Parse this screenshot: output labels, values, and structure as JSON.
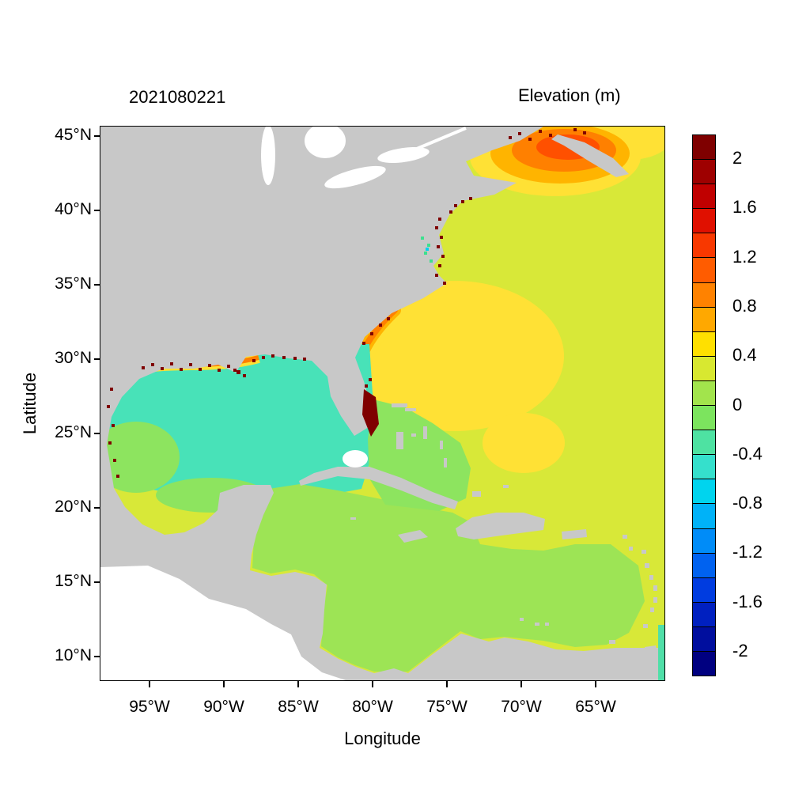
{
  "header": {
    "run_id": "2021080221",
    "colorbar_title": "Elevation (m)"
  },
  "axes": {
    "xlabel": "Longitude",
    "ylabel": "Latitude",
    "x_tick_labels": [
      "95°W",
      "90°W",
      "85°W",
      "80°W",
      "75°W",
      "70°W",
      "65°W"
    ],
    "y_tick_labels": [
      "45°N",
      "40°N",
      "35°N",
      "30°N",
      "25°N",
      "20°N",
      "15°N",
      "10°N"
    ]
  },
  "palette": {
    "land": "#c8c8c8",
    "lake": "#ffffff",
    "outside_domain": "#ffffff",
    "atlantic": "#d8e838",
    "yellow_patch": "#ffe135",
    "amber": "#ffb400",
    "orange": "#ff8000",
    "deep_orange": "#ff5000",
    "dark_red": "#7f0000",
    "gulf_teal": "#48e2b8",
    "green_light": "#8de45f",
    "caribbean_green": "#9de455",
    "teal_strip": "#50dfa8",
    "speckle_green": "#3ce08e",
    "speckle_cyan": "#00d0f0",
    "frame": "#000000"
  },
  "chart_data": {
    "type": "heatmap",
    "title": "Elevation (m)",
    "timestamp": "2021080221",
    "xlabel": "Longitude",
    "ylabel": "Latitude",
    "x_ticks_deg_west": [
      95,
      90,
      85,
      80,
      75,
      70,
      65
    ],
    "y_ticks_deg_north": [
      45,
      40,
      35,
      30,
      25,
      20,
      15,
      10
    ],
    "x_range_deg_west": [
      98,
      60
    ],
    "y_range_deg_north": [
      8.5,
      45.5
    ],
    "grid": false,
    "legend_position": "right-colorbar",
    "colorbar": {
      "label": "Elevation (m)",
      "min": -2.2,
      "max": 2.2,
      "step": 0.2,
      "tick_values": [
        2,
        1.6,
        1.2,
        0.8,
        0.4,
        0,
        -0.4,
        -0.8,
        -1.2,
        -1.6,
        -2
      ],
      "tick_labels": [
        "2",
        "1.6",
        "1.2",
        "0.8",
        "0.4",
        "0",
        "-0.4",
        "-0.8",
        "-1.2",
        "-1.6",
        "-2"
      ],
      "colors_top_to_bottom": [
        "#7f0000",
        "#9e0000",
        "#c00000",
        "#e01000",
        "#f83800",
        "#ff5c00",
        "#ff8200",
        "#ffa800",
        "#ffe000",
        "#d8e830",
        "#a2e44c",
        "#7ce45e",
        "#4ee2a2",
        "#35e0cc",
        "#00d4ee",
        "#00b2f8",
        "#008cf8",
        "#0062f0",
        "#003ce0",
        "#0020c0",
        "#000e9e",
        "#000080"
      ]
    },
    "regions": [
      {
        "name": "Open Atlantic",
        "approx_value_m": 0.3
      },
      {
        "name": "Central-west Atlantic high (68-81W, 24-35N)",
        "approx_value_m": 0.5
      },
      {
        "name": "Southeast US coastal band",
        "approx_value_m": 0.8
      },
      {
        "name": "Gulf of Maine / Bay of Fundy high",
        "approx_value_m": 1.3
      },
      {
        "name": "Gulf of Mexico interior",
        "approx_value_m": -0.3
      },
      {
        "name": "Gulf of Mexico southwest margin",
        "approx_value_m": -0.1
      },
      {
        "name": "Caribbean Sea",
        "approx_value_m": 0.1
      },
      {
        "name": "Louisiana-Texas shelf coastal speckles",
        "approx_value_m": 2.0
      },
      {
        "name": "Florida east coast speckles",
        "approx_value_m": 2.0
      },
      {
        "name": "Mid-Atlantic estuary speckles",
        "approx_value_m": 2.0
      },
      {
        "name": "Venezuela coast yellow spot",
        "approx_value_m": 0.5
      },
      {
        "name": "Land mask",
        "approx_value_m": null
      }
    ]
  }
}
